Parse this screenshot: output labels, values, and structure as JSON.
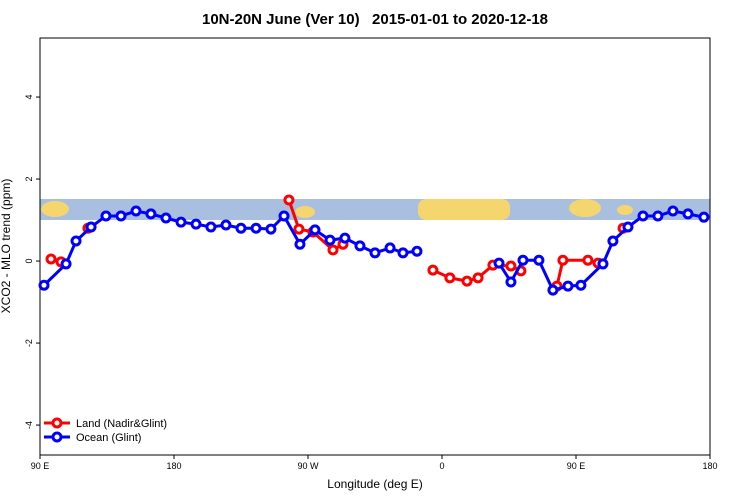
{
  "chart_data": {
    "type": "line",
    "title": "10N-20N June (Ver 10)   2015-01-01 to 2020-12-18",
    "x_label": "Longitude (deg E)",
    "y_label": "XCO2 - MLO trend (ppm)",
    "xlim": [
      90,
      540
    ],
    "ylim": [
      -4.73,
      5.44
    ],
    "xticks": [
      {
        "value": 90,
        "label": "90 E"
      },
      {
        "value": 180,
        "label": "180"
      },
      {
        "value": 270,
        "label": "90 W"
      },
      {
        "value": 360,
        "label": "0"
      },
      {
        "value": 450,
        "label": "90 E"
      },
      {
        "value": 540,
        "label": "180"
      }
    ],
    "yticks": [
      -4,
      -2,
      0,
      2,
      4
    ],
    "legend": "bottom-left",
    "series": [
      {
        "name": "Land (Nadir&Glint)",
        "color": "#ff0000",
        "x": [
          97.4,
          104.1,
          null,
          122.2,
          null,
          257.2,
          263.9,
          273.3,
          286.8,
          293.5,
          null,
          353.9,
          365.3,
          376.8,
          384.2,
          394.2,
          406.3,
          413.0,
          null,
          437.2,
          441.2,
          458.0,
          464.8,
          null,
          481.6
        ],
        "values": [
          0.05,
          -0.02,
          null,
          0.8,
          null,
          1.49,
          0.78,
          0.71,
          0.27,
          0.41,
          null,
          -0.22,
          -0.41,
          -0.49,
          -0.41,
          -0.1,
          -0.12,
          -0.24,
          null,
          -0.61,
          0.02,
          0.02,
          -0.05,
          null,
          0.8
        ]
      },
      {
        "name": "Ocean (Glint)",
        "color": "#0000ff",
        "x": [
          92.7,
          107.5,
          114.2,
          124.3,
          134.3,
          144.4,
          154.5,
          164.5,
          174.6,
          184.7,
          194.8,
          204.8,
          214.9,
          225.0,
          235.1,
          245.1,
          253.9,
          264.6,
          274.7,
          284.8,
          294.8,
          304.9,
          315.0,
          325.1,
          333.8,
          343.2,
          null,
          398.3,
          406.3,
          414.4,
          425.1,
          434.5,
          444.6,
          453.3,
          468.1,
          474.8,
          484.9,
          495.0,
          505.0,
          515.1,
          525.2,
          535.9
        ],
        "values": [
          -0.59,
          -0.07,
          0.49,
          0.83,
          1.1,
          1.1,
          1.22,
          1.15,
          1.05,
          0.95,
          0.9,
          0.83,
          0.88,
          0.8,
          0.8,
          0.78,
          1.1,
          0.41,
          0.76,
          0.51,
          0.56,
          0.37,
          0.2,
          0.32,
          0.2,
          0.24,
          null,
          -0.05,
          -0.51,
          0.02,
          0.02,
          -0.71,
          -0.61,
          -0.59,
          -0.07,
          0.49,
          0.83,
          1.1,
          1.1,
          1.22,
          1.15,
          1.07
        ]
      }
    ]
  }
}
